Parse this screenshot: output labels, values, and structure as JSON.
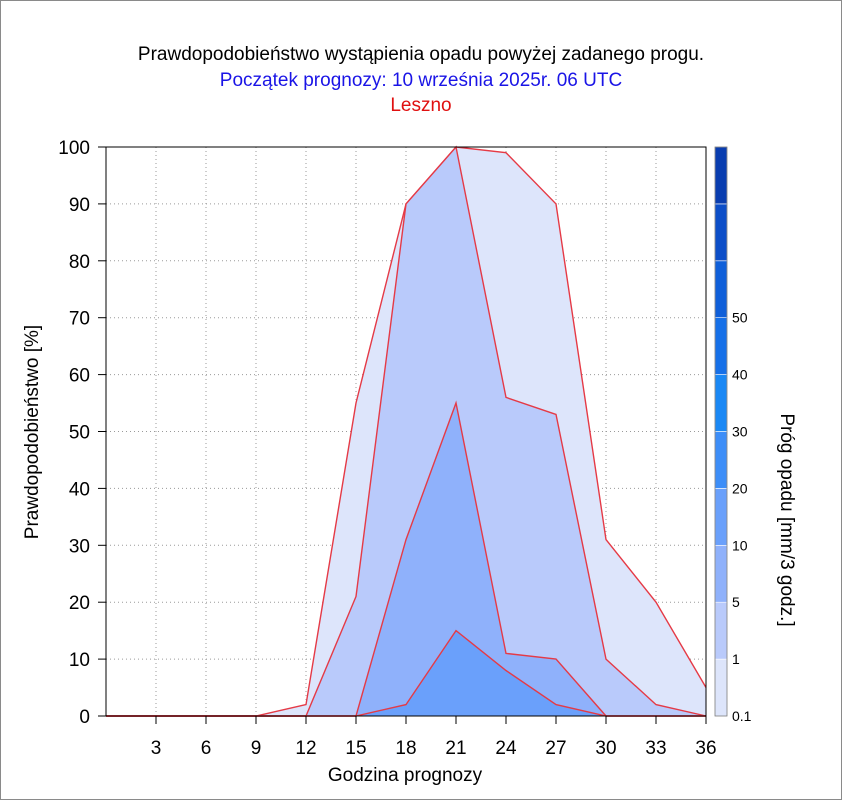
{
  "titles": {
    "line1": "Prawdopodobieństwo wystąpienia opadu powyżej zadanego progu.",
    "line2": "Początek prognozy: 10 września 2025r. 06 UTC",
    "line3": "Leszno"
  },
  "colors": {
    "title1": "#000000",
    "title2": "#1a14e6",
    "title3": "#e01010",
    "outline": "#e53a46",
    "fill_0_1": "#dde5fb",
    "fill_1": "#b9cafb",
    "fill_5": "#8fb1fb",
    "fill_10": "#6aa0fb"
  },
  "chart_data": {
    "type": "area",
    "xlabel": "Godzina prognozy",
    "ylabel": "Prawdopodobieństwo [%]",
    "x": [
      0,
      3,
      6,
      9,
      12,
      15,
      18,
      21,
      24,
      27,
      30,
      33,
      36
    ],
    "x_tick_labels": [
      "3",
      "6",
      "9",
      "12",
      "15",
      "18",
      "21",
      "24",
      "27",
      "30",
      "33",
      "36"
    ],
    "xlim": [
      0,
      36
    ],
    "ylim": [
      0,
      100
    ],
    "y_ticks": [
      0,
      10,
      20,
      30,
      40,
      50,
      60,
      70,
      80,
      90,
      100
    ],
    "grid": true,
    "series": [
      {
        "name": "0.1",
        "values": [
          0,
          0,
          0,
          0,
          2,
          55,
          90,
          100,
          99,
          90,
          31,
          20,
          5
        ]
      },
      {
        "name": "1",
        "values": [
          0,
          0,
          0,
          0,
          0,
          21,
          90,
          100,
          56,
          53,
          10,
          2,
          0
        ]
      },
      {
        "name": "5",
        "values": [
          0,
          0,
          0,
          0,
          0,
          0,
          31,
          55,
          11,
          10,
          0,
          0,
          0
        ]
      },
      {
        "name": "10",
        "values": [
          0,
          0,
          0,
          0,
          0,
          0,
          2,
          15,
          8,
          2,
          0,
          0,
          0
        ]
      }
    ],
    "colorbar": {
      "label": "Próg opadu [mm/3 godz.]",
      "tick_labels": [
        "0.1",
        "1",
        "5",
        "10",
        "20",
        "30",
        "40",
        "50"
      ],
      "colors": [
        "#dde5fb",
        "#b9cafb",
        "#8fb1fb",
        "#6aa0fb",
        "#3d8ef8",
        "#1a88f5",
        "#1670e8",
        "#0f5fd9",
        "#0c4ec8",
        "#093db0"
      ]
    }
  }
}
